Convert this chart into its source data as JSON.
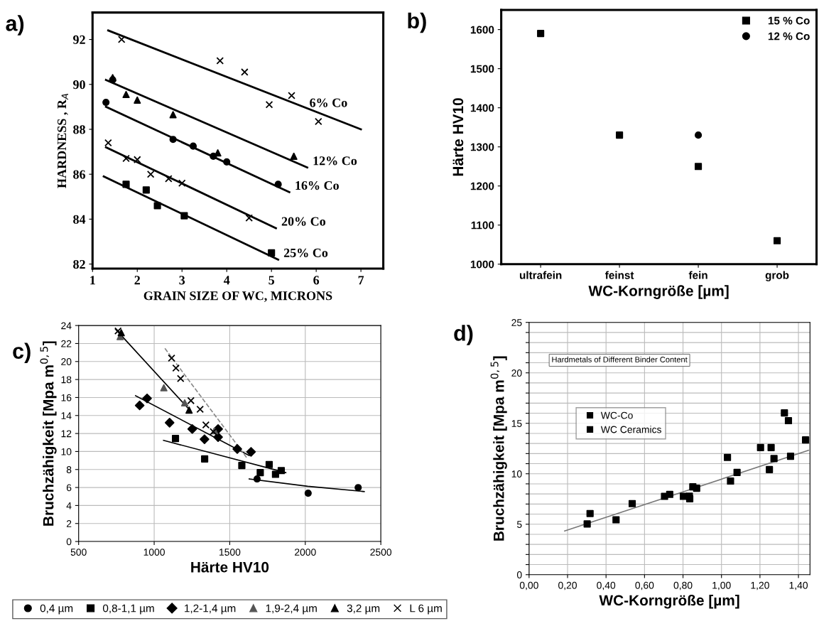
{
  "chart_data": [
    {
      "type": "scatter",
      "annotations": [
        "a)"
      ],
      "xlabel": "GRAIN SIZE OF WC, MICRONS",
      "ylabel": "HARDNESS , R$_{A}$",
      "xlim": [
        1,
        7.5
      ],
      "ylim": [
        81.8,
        93.2
      ],
      "xticks": [
        1,
        2,
        3,
        4,
        5,
        6,
        7
      ],
      "yticks": [
        82,
        84,
        86,
        88,
        90,
        92
      ],
      "grid": false,
      "legend": false,
      "series": [
        {
          "type": "scatter",
          "marker": "cross",
          "color": "#000000",
          "x": [
            1.65,
            3.85,
            4.4,
            4.95,
            5.45,
            6.05
          ],
          "values": [
            92.0,
            91.05,
            90.55,
            89.1,
            89.5,
            88.35
          ]
        },
        {
          "type": "scatter",
          "marker": "triangle",
          "color": "#000000",
          "x": [
            1.45,
            1.75,
            2.0,
            2.8,
            3.8,
            5.5
          ],
          "values": [
            90.3,
            89.55,
            89.3,
            88.65,
            86.95,
            86.8
          ]
        },
        {
          "type": "scatter",
          "marker": "circle",
          "color": "#000000",
          "x": [
            1.3,
            1.45,
            2.8,
            3.25,
            3.7,
            4.0,
            5.15
          ],
          "values": [
            89.2,
            90.2,
            87.55,
            87.25,
            86.8,
            86.55,
            85.55
          ]
        },
        {
          "type": "scatter",
          "marker": "cross",
          "color": "#000000",
          "x": [
            1.35,
            1.75,
            2.0,
            2.3,
            2.7,
            3.0,
            4.5
          ],
          "values": [
            87.4,
            86.7,
            86.65,
            86.0,
            85.8,
            85.6,
            84.05
          ]
        },
        {
          "type": "scatter",
          "marker": "square",
          "color": "#000000",
          "x": [
            1.75,
            2.2,
            2.45,
            3.05,
            5.0
          ],
          "values": [
            85.55,
            85.3,
            84.6,
            84.15,
            82.5
          ]
        },
        {
          "type": "line",
          "name": "6% Co",
          "color": "#000000",
          "line_style": "solid",
          "x": [
            1.35,
            7.0
          ],
          "values": [
            92.4,
            88.0
          ]
        },
        {
          "type": "line",
          "name": "12% Co",
          "color": "#000000",
          "line_style": "solid",
          "x": [
            1.3,
            5.8
          ],
          "values": [
            90.2,
            86.3
          ]
        },
        {
          "type": "line",
          "name": "16% Co",
          "color": "#000000",
          "line_style": "solid",
          "x": [
            1.3,
            5.4
          ],
          "values": [
            89.0,
            85.2
          ]
        },
        {
          "type": "line",
          "name": "20% Co",
          "color": "#000000",
          "line_style": "solid",
          "x": [
            1.3,
            5.1
          ],
          "values": [
            87.2,
            83.6
          ]
        },
        {
          "type": "line",
          "name": "25% Co",
          "color": "#000000",
          "line_style": "solid",
          "x": [
            1.25,
            5.15
          ],
          "values": [
            85.9,
            82.2
          ]
        }
      ]
    },
    {
      "type": "scatter",
      "annotations": [
        "b)"
      ],
      "xlabel": "WC-Korngröße [µm]",
      "ylabel": "Härte HV10",
      "categories": [
        "ultrafein",
        "feinst",
        "fein",
        "grob"
      ],
      "ylim": [
        1000,
        1650
      ],
      "yticks": [
        1000,
        1100,
        1200,
        1300,
        1400,
        1500,
        1600
      ],
      "grid": false,
      "legend": "top right",
      "series": [
        {
          "name": "15 % Co",
          "type": "scatter",
          "marker": "square",
          "color": "#000000",
          "values": [
            1590,
            1330,
            1250,
            1060
          ]
        },
        {
          "name": "12 % Co",
          "type": "scatter",
          "marker": "circle",
          "color": "#000000",
          "values": [
            null,
            null,
            1330,
            null
          ]
        }
      ]
    },
    {
      "type": "scatter",
      "annotations": [
        "c)"
      ],
      "xlabel": "Härte HV10",
      "ylabel": "Bruchzähigkeit [Mpa m$^{0,5}$]",
      "xlim": [
        500,
        2500
      ],
      "ylim": [
        0,
        24
      ],
      "xticks": [
        500,
        1000,
        1500,
        2000,
        2500
      ],
      "yticks": [
        0,
        2,
        4,
        6,
        8,
        10,
        12,
        14,
        16,
        18,
        20,
        22,
        24
      ],
      "grid": true,
      "legend": "bottom",
      "series": [
        {
          "name": "0,4 µm",
          "type": "scatter",
          "marker": "circle",
          "color": "#000000",
          "x": [
            1681,
            2019,
            2350
          ],
          "values": [
            6.95,
            5.37,
            5.99
          ]
        },
        {
          "name": "0,8-1,1 µm",
          "type": "scatter",
          "marker": "square",
          "color": "#000000",
          "x": [
            1141,
            1334,
            1580,
            1702,
            1761,
            1803,
            1841
          ],
          "values": [
            11.45,
            9.17,
            8.44,
            7.65,
            8.55,
            7.47,
            7.88
          ]
        },
        {
          "name": "1,2-1,4 µm",
          "type": "scatter",
          "marker": "diamond",
          "color": "#000000",
          "x": [
            904,
            953,
            1102,
            1252,
            1333,
            1423,
            1423,
            1550,
            1641
          ],
          "values": [
            15.12,
            15.9,
            13.2,
            12.5,
            11.36,
            12.5,
            11.6,
            10.28,
            9.96
          ]
        },
        {
          "name": "1,9-2,4 µm",
          "type": "scatter",
          "marker": "triangle",
          "color": "#555555",
          "x": [
            775,
            1064,
            1202,
            1400
          ],
          "values": [
            22.77,
            17.08,
            15.4,
            12.3
          ]
        },
        {
          "name": "3,2 µm",
          "type": "scatter",
          "marker": "triangle",
          "color": "#000000",
          "x": [
            782,
            1231
          ],
          "values": [
            23.2,
            14.6
          ]
        },
        {
          "name": "L 6 µm",
          "type": "scatter",
          "marker": "cross",
          "color": "#000000",
          "x": [
            761,
            1115,
            1144,
            1175,
            1243,
            1304,
            1342,
            1391
          ],
          "values": [
            23.4,
            20.38,
            19.27,
            18.1,
            15.65,
            14.69,
            12.96,
            12.2
          ]
        },
        {
          "type": "line",
          "color": "#000000",
          "line_style": "solid",
          "x": [
            744,
            1230
          ],
          "values": [
            23.6,
            14.7
          ]
        },
        {
          "type": "line",
          "color": "#000000",
          "line_style": "solid",
          "x": [
            877,
            1629
          ],
          "values": [
            16.2,
            9.55
          ]
        },
        {
          "type": "line",
          "color": "#000000",
          "line_style": "solid",
          "x": [
            1062,
            1871
          ],
          "values": [
            11.24,
            7.65
          ]
        },
        {
          "type": "line",
          "color": "#000000",
          "line_style": "solid",
          "x": [
            1629,
            2016,
            2390
          ],
          "values": [
            6.95,
            6.13,
            5.55
          ]
        },
        {
          "type": "line",
          "color": "#888888",
          "line_style": "dashed",
          "x": [
            1071,
            1614
          ],
          "values": [
            21.46,
            9.28
          ]
        }
      ]
    },
    {
      "type": "scatter",
      "annotations": [
        "d)",
        "Hardmetals of Different Binder Content"
      ],
      "xlabel": "WC-Korngröße [µm]",
      "ylabel": "Bruchzähigkeit [Mpa m$^{0,5}$]",
      "xlim": [
        0,
        1.46
      ],
      "ylim": [
        0,
        25
      ],
      "xticks": [
        {
          "value": 0,
          "label": "0,00"
        },
        {
          "value": 0.2,
          "label": "0,20"
        },
        {
          "value": 0.4,
          "label": "0,40"
        },
        {
          "value": 0.6,
          "label": "0,60"
        },
        {
          "value": 0.8,
          "label": "0,80"
        },
        {
          "value": 1.0,
          "label": "1,00"
        },
        {
          "value": 1.2,
          "label": "1,20"
        },
        {
          "value": 1.4,
          "label": "1,40"
        }
      ],
      "yticks": [
        0,
        {
          "value": 1,
          "label": null
        },
        {
          "value": 2,
          "label": null
        },
        {
          "value": 3,
          "label": null
        },
        {
          "value": 4,
          "label": null
        },
        5,
        {
          "value": 6,
          "label": null
        },
        {
          "value": 7,
          "label": null
        },
        {
          "value": 8,
          "label": null
        },
        {
          "value": 9,
          "label": null
        },
        10,
        {
          "value": 11,
          "label": null
        },
        {
          "value": 12,
          "label": null
        },
        {
          "value": 13,
          "label": null
        },
        {
          "value": 14,
          "label": null
        },
        15,
        {
          "value": 16,
          "label": null
        },
        {
          "value": 17,
          "label": null
        },
        {
          "value": 18,
          "label": null
        },
        {
          "value": 19,
          "label": null
        },
        20,
        {
          "value": 21,
          "label": null
        },
        {
          "value": 22,
          "label": null
        },
        {
          "value": 23,
          "label": null
        },
        {
          "value": 24,
          "label": null
        },
        25
      ],
      "grid": true,
      "legend": "center left",
      "series": [
        {
          "name": "WC-Co",
          "type": "scatter",
          "marker": "square",
          "color": "#000000",
          "x": [
            0.302,
            0.317,
            0.452,
            0.536,
            0.704,
            0.731,
            0.802,
            0.833,
            0.835,
            0.851,
            0.871,
            1.031,
            1.047,
            1.081,
            1.203,
            1.258,
            1.249,
            1.273,
            1.327,
            1.348,
            1.359,
            1.437
          ],
          "values": [
            5.03,
            6.06,
            5.44,
            7.04,
            7.76,
            7.96,
            7.76,
            7.78,
            7.53,
            8.71,
            8.56,
            11.62,
            9.28,
            10.13,
            12.6,
            12.6,
            10.41,
            11.5,
            16.03,
            15.26,
            11.73,
            13.35
          ]
        },
        {
          "name": "WC Ceramics",
          "marker": "square",
          "color": "#000000"
        },
        {
          "type": "line",
          "color": "#777777",
          "line_style": "solid",
          "x": [
            0.185,
            1.452
          ],
          "values": [
            4.33,
            12.32
          ]
        }
      ]
    }
  ]
}
